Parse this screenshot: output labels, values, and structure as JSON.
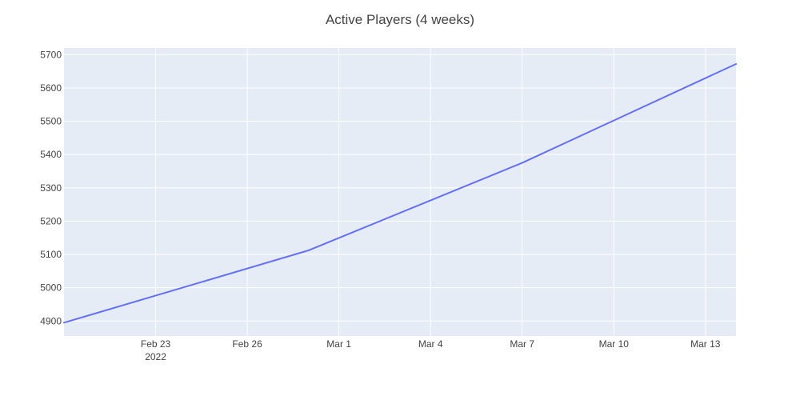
{
  "chart_data": {
    "type": "line",
    "title": "Active Players (4 weeks)",
    "xlabel": "",
    "ylabel": "",
    "x_axis": {
      "type": "date",
      "range": [
        "2022-02-20",
        "2022-03-14"
      ],
      "ticks": [
        {
          "value": "2022-02-23",
          "label": "Feb 23",
          "sublabel": "2022"
        },
        {
          "value": "2022-02-26",
          "label": "Feb 26"
        },
        {
          "value": "2022-03-01",
          "label": "Mar 1"
        },
        {
          "value": "2022-03-04",
          "label": "Mar 4"
        },
        {
          "value": "2022-03-07",
          "label": "Mar 7"
        },
        {
          "value": "2022-03-10",
          "label": "Mar 10"
        },
        {
          "value": "2022-03-13",
          "label": "Mar 13"
        }
      ]
    },
    "y_axis": {
      "range": [
        4855,
        5720
      ],
      "ticks": [
        4900,
        5000,
        5100,
        5200,
        5300,
        5400,
        5500,
        5600,
        5700
      ]
    },
    "grid": true,
    "legend": "none",
    "colors": {
      "plot_background": "#e5ecf6",
      "grid": "#ffffff",
      "series": "#636efa",
      "text": "#444444"
    },
    "series": [
      {
        "x": [
          "2022-02-20",
          "2022-02-28",
          "2022-03-07",
          "2022-03-14"
        ],
        "y": [
          4895,
          5112,
          5375,
          5672
        ]
      }
    ]
  }
}
